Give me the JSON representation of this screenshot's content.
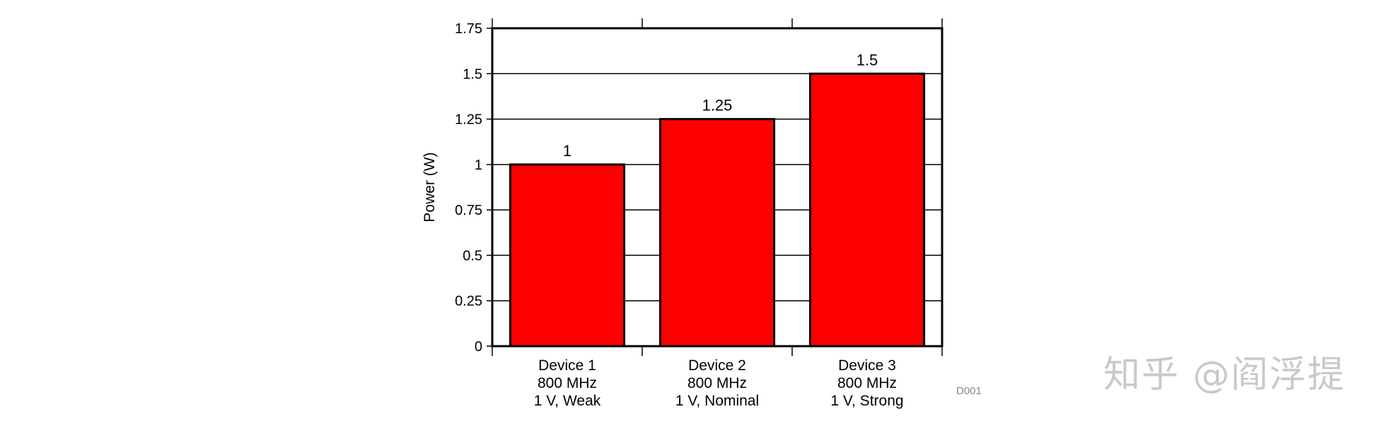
{
  "chart_data": {
    "type": "bar",
    "categories": [
      [
        "Device 1",
        "800 MHz",
        "1 V, Weak"
      ],
      [
        "Device 2",
        "800 MHz",
        "1 V, Nominal"
      ],
      [
        "Device 3",
        "800 MHz",
        "1 V, Strong"
      ]
    ],
    "values": [
      1,
      1.25,
      1.5
    ],
    "data_labels": [
      "1",
      "1.25",
      "1.5"
    ],
    "title": "",
    "xlabel": "",
    "ylabel": "Power (W)",
    "ylim": [
      0,
      1.75
    ],
    "yticks": [
      0,
      0.25,
      0.5,
      0.75,
      1,
      1.25,
      1.5,
      1.75
    ],
    "ytick_labels": [
      "0",
      "0.25",
      "0.5",
      "0.75",
      "1",
      "1.25",
      "1.5",
      "1.75"
    ],
    "grid": true,
    "bar_color": "#ff0000",
    "bar_edge_color": "#000000"
  },
  "figure_id": "D001",
  "watermark": "知乎 @阎浮提"
}
